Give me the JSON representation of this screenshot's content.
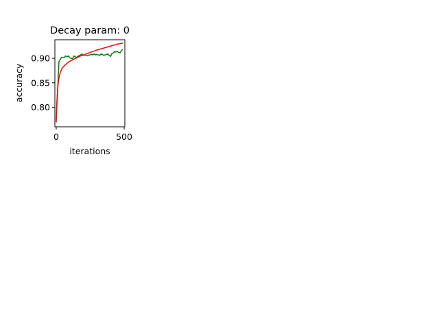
{
  "chart_data": {
    "type": "line",
    "title": "Decay param: 0",
    "xlabel": "iterations",
    "ylabel": "accuracy",
    "xlim": [
      -10,
      505
    ],
    "ylim": [
      0.76,
      0.938
    ],
    "xticks": [
      0,
      500
    ],
    "yticks": [
      0.8,
      0.85,
      0.9
    ],
    "ytick_labels": [
      "0.80",
      "0.85",
      "0.90"
    ],
    "grid": false,
    "legend": "none",
    "series": [
      {
        "color": "#008000",
        "x": [
          0,
          20,
          30,
          40,
          50,
          60,
          70,
          80,
          90,
          100,
          110,
          120,
          130,
          140,
          150,
          160,
          170,
          180,
          190,
          200,
          210,
          220,
          230,
          240,
          250,
          260,
          270,
          280,
          290,
          300,
          310,
          320,
          330,
          340,
          350,
          360,
          370,
          380,
          390,
          400,
          410,
          420,
          430,
          440,
          450,
          460,
          470,
          480,
          490
        ],
        "y": [
          0.775,
          0.893,
          0.898,
          0.902,
          0.901,
          0.902,
          0.905,
          0.903,
          0.905,
          0.901,
          0.9,
          0.899,
          0.905,
          0.903,
          0.902,
          0.904,
          0.906,
          0.907,
          0.909,
          0.906,
          0.907,
          0.906,
          0.905,
          0.907,
          0.907,
          0.908,
          0.907,
          0.909,
          0.907,
          0.908,
          0.907,
          0.906,
          0.909,
          0.908,
          0.906,
          0.907,
          0.908,
          0.909,
          0.906,
          0.904,
          0.91,
          0.911,
          0.914,
          0.913,
          0.914,
          0.912,
          0.911,
          0.916,
          0.918
        ]
      },
      {
        "color": "#ff0000",
        "x": [
          0,
          5,
          10,
          15,
          20,
          30,
          40,
          50,
          60,
          80,
          100,
          120,
          150,
          180,
          210,
          250,
          300,
          350,
          400,
          450,
          490
        ],
        "y": [
          0.769,
          0.812,
          0.836,
          0.85,
          0.86,
          0.871,
          0.878,
          0.882,
          0.885,
          0.89,
          0.894,
          0.897,
          0.901,
          0.905,
          0.908,
          0.912,
          0.917,
          0.921,
          0.925,
          0.929,
          0.931
        ]
      }
    ]
  }
}
